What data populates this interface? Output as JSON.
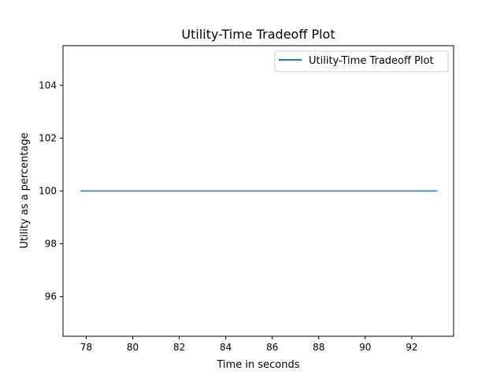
{
  "chart_data": {
    "type": "line",
    "title": "Utility-Time Tradeoff Plot",
    "xlabel": "Time in seconds",
    "ylabel": "Utility as a percentage",
    "xlim": [
      77.0,
      93.8
    ],
    "ylim": [
      94.5,
      105.5
    ],
    "xticks": [
      78,
      80,
      82,
      84,
      86,
      88,
      90,
      92
    ],
    "yticks": [
      96,
      98,
      100,
      102,
      104
    ],
    "grid": false,
    "legend_position": "top-right",
    "series": [
      {
        "name": "Utility-Time Tradeoff Plot",
        "color": "#1f77b4",
        "x": [
          77.75,
          93.1
        ],
        "y": [
          100,
          100
        ]
      }
    ]
  }
}
